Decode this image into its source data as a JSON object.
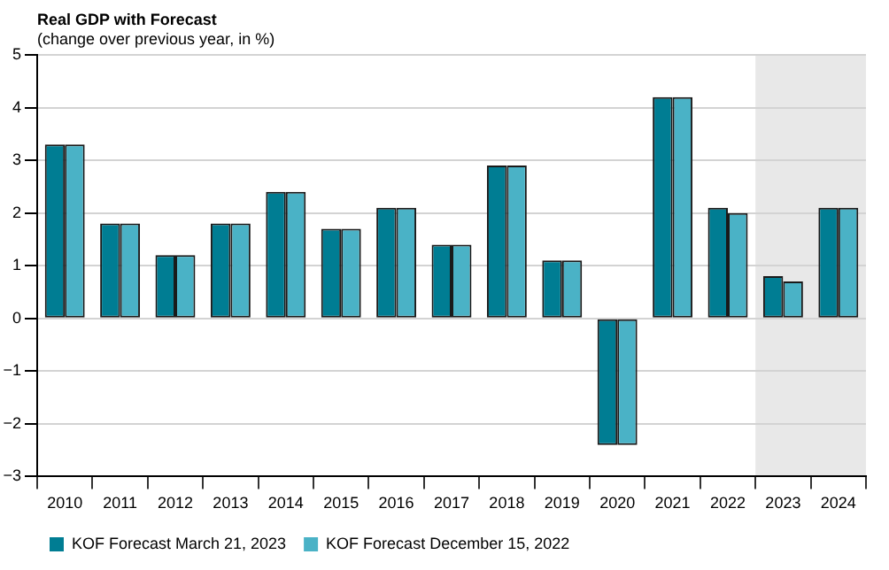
{
  "chart_data": {
    "type": "bar",
    "title": "Real GDP with Forecast",
    "subtitle": "(change over previous year, in %)",
    "categories": [
      "2010",
      "2011",
      "2012",
      "2013",
      "2014",
      "2015",
      "2016",
      "2017",
      "2018",
      "2019",
      "2020",
      "2021",
      "2022",
      "2023",
      "2024"
    ],
    "series": [
      {
        "name": "KOF Forecast March 21, 2023",
        "color": "#007d93",
        "values": [
          3.3,
          1.8,
          1.2,
          1.8,
          2.4,
          1.7,
          2.1,
          1.4,
          2.9,
          1.1,
          -2.4,
          4.2,
          2.1,
          0.8,
          2.1
        ]
      },
      {
        "name": "KOF Forecast December 15, 2022",
        "color": "#4ab2c6",
        "values": [
          3.3,
          1.8,
          1.2,
          1.8,
          2.4,
          1.7,
          2.1,
          1.4,
          2.9,
          1.1,
          -2.4,
          4.2,
          2.0,
          0.7,
          2.1
        ]
      }
    ],
    "ylim": [
      -3,
      5
    ],
    "yticks": [
      -3,
      -2,
      -1,
      0,
      1,
      2,
      3,
      4,
      5
    ],
    "grid": "y",
    "legend": "bottom left",
    "bands": [
      {
        "axis": "x",
        "from": "2023",
        "to": "2024",
        "color": "#e8e8e8"
      }
    ]
  }
}
